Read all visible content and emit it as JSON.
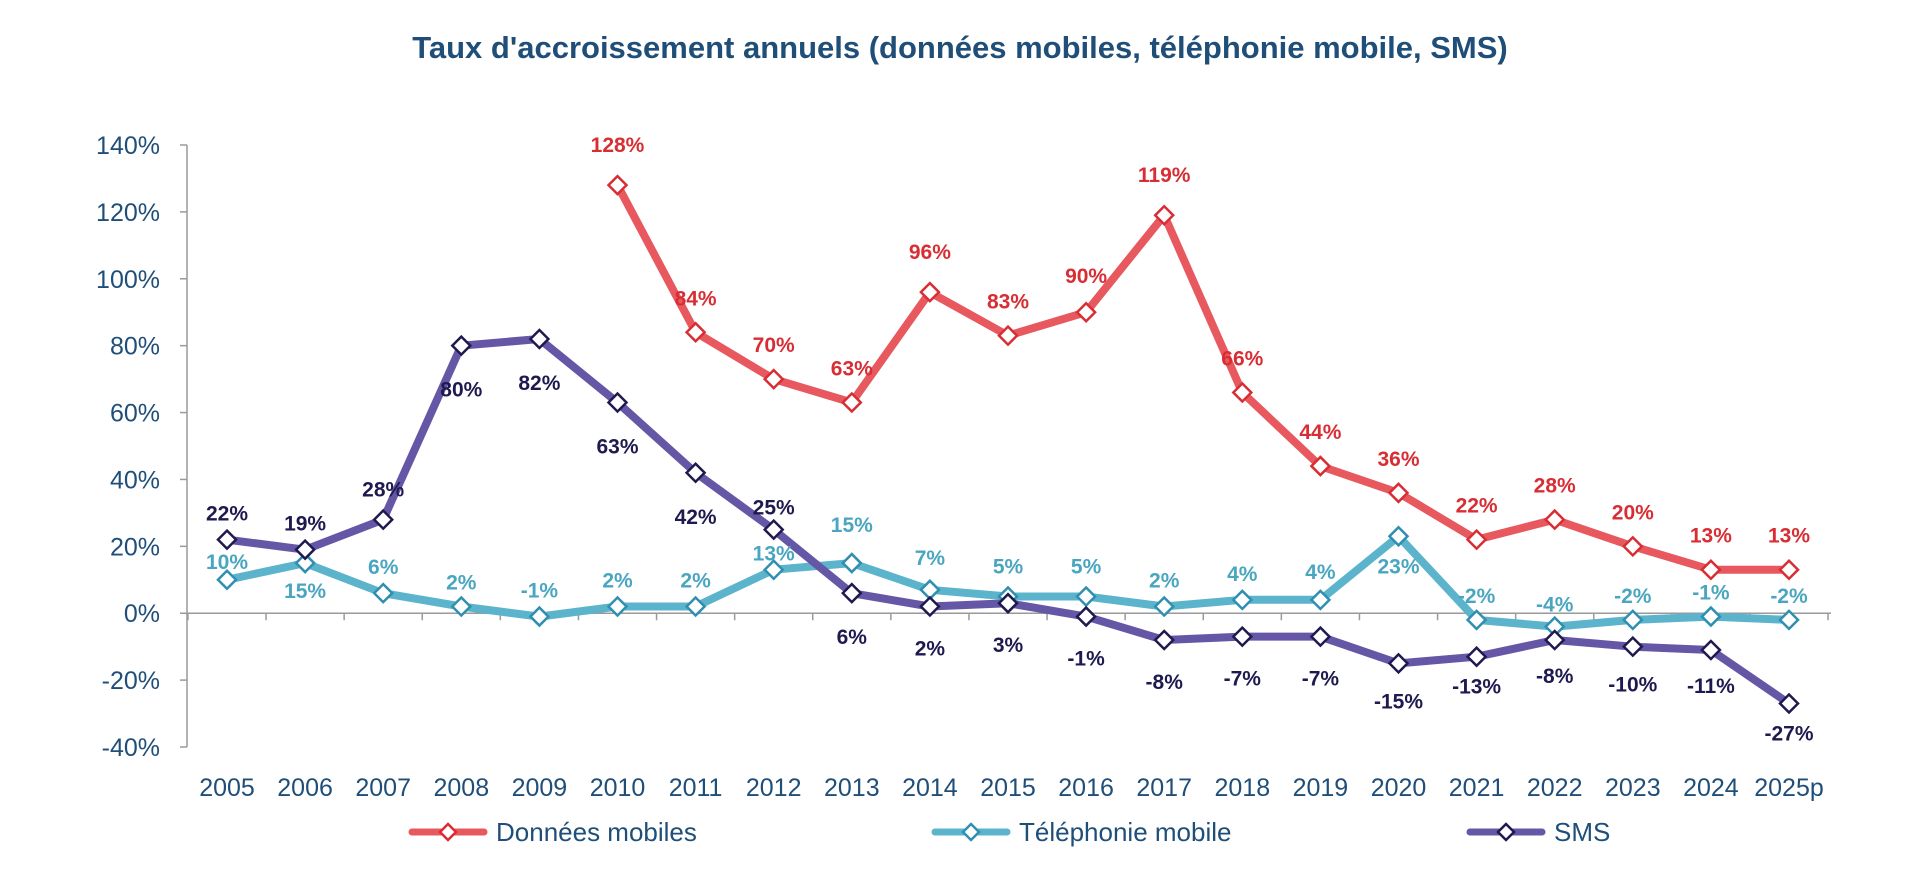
{
  "chart_data": {
    "type": "line",
    "title": "Taux d'accroissement annuels (données mobiles, téléphonie mobile, SMS)",
    "categories": [
      "2005",
      "2006",
      "2007",
      "2008",
      "2009",
      "2010",
      "2011",
      "2012",
      "2013",
      "2014",
      "2015",
      "2016",
      "2017",
      "2018",
      "2019",
      "2020",
      "2021",
      "2022",
      "2023",
      "2024",
      "2025p"
    ],
    "y_ticks": [
      "140%",
      "120%",
      "100%",
      "80%",
      "60%",
      "40%",
      "20%",
      "0%",
      "-20%",
      "-40%"
    ],
    "ylim": [
      -40,
      140
    ],
    "grid": false,
    "legend_position": "bottom",
    "series": [
      {
        "name": "Données mobiles",
        "color": "#e8585f",
        "label_color": "#d92d34",
        "values": [
          null,
          null,
          null,
          null,
          null,
          128,
          84,
          70,
          63,
          96,
          83,
          90,
          119,
          66,
          44,
          36,
          22,
          28,
          20,
          13,
          13
        ],
        "labels": [
          null,
          null,
          null,
          null,
          null,
          "128%",
          "84%",
          "70%",
          "63%",
          "96%",
          "83%",
          "90%",
          "119%",
          "66%",
          "44%",
          "36%",
          "22%",
          "28%",
          "20%",
          "13%",
          "13%"
        ]
      },
      {
        "name": "Téléphonie mobile",
        "color": "#5bb4cc",
        "label_color": "#4aa6c0",
        "values": [
          10,
          15,
          6,
          2,
          -1,
          2,
          2,
          13,
          15,
          7,
          5,
          5,
          2,
          4,
          4,
          23,
          -2,
          -4,
          -2,
          -1,
          -2
        ],
        "labels": [
          "10%",
          "15%",
          "6%",
          "2%",
          "-1%",
          "2%",
          "2%",
          "13%",
          "15%",
          "7%",
          "5%",
          "5%",
          "2%",
          "4%",
          "4%",
          "23%",
          "-2%",
          "-4%",
          "-2%",
          "-1%",
          "-2%"
        ]
      },
      {
        "name": "SMS",
        "color": "#6557a6",
        "label_color": "#1e1a4f",
        "values": [
          22,
          19,
          28,
          80,
          82,
          63,
          42,
          25,
          6,
          2,
          3,
          -1,
          -8,
          -7,
          -7,
          -15,
          -13,
          -8,
          -10,
          -11,
          -27
        ],
        "labels": [
          "22%",
          "19%",
          "28%",
          "80%",
          "82%",
          "63%",
          "42%",
          "25%",
          "6%",
          "2%",
          "3%",
          "-1%",
          "-8%",
          "-7%",
          "-7%",
          "-15%",
          "-13%",
          "-8%",
          "-10%",
          "-11%",
          "-27%"
        ]
      }
    ]
  }
}
